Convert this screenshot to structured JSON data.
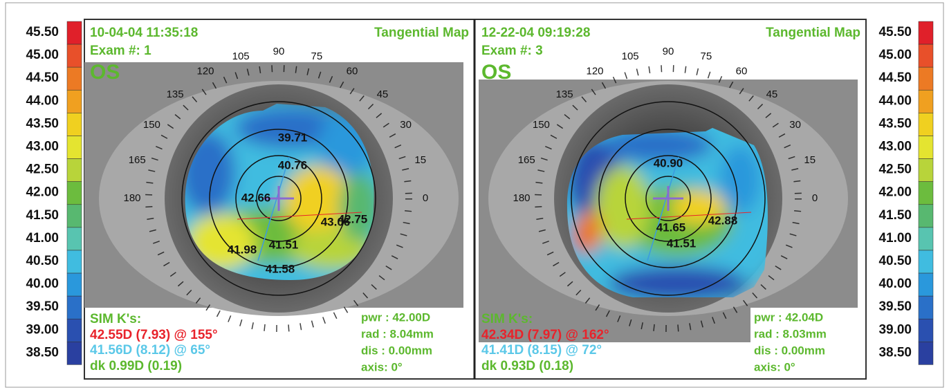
{
  "scales": [
    {
      "labels": [
        "45.50",
        "45.00",
        "44.50",
        "44.00",
        "43.50",
        "43.00",
        "42.50",
        "42.00",
        "41.50",
        "41.00",
        "40.50",
        "40.00",
        "39.50",
        "39.00",
        "38.50"
      ],
      "colors": [
        "#e0202a",
        "#e8502a",
        "#ec7a24",
        "#f0a020",
        "#f0d020",
        "#e4e430",
        "#b8d43a",
        "#6cbc3e",
        "#58b870",
        "#58c4b0",
        "#40bce0",
        "#2a98dc",
        "#2a70c8",
        "#2a50b0",
        "#2a40a0"
      ]
    },
    {
      "labels": [
        "45.50",
        "45.00",
        "44.50",
        "44.00",
        "43.50",
        "43.00",
        "42.50",
        "42.00",
        "41.50",
        "41.00",
        "40.50",
        "40.00",
        "39.50",
        "39.00",
        "38.50"
      ],
      "colors": [
        "#e0202a",
        "#e8502a",
        "#ec7a24",
        "#f0a020",
        "#f0d020",
        "#e4e430",
        "#b8d43a",
        "#6cbc3e",
        "#58b870",
        "#58c4b0",
        "#40bce0",
        "#2a98dc",
        "#2a70c8",
        "#2a50b0",
        "#2a40a0"
      ]
    }
  ],
  "panels": [
    {
      "date": "10-04-04 11:35:18",
      "map_type": "Tangential Map",
      "exam": "Exam #: 1",
      "eye": "OS",
      "angles": [
        "105",
        "90",
        "75",
        "60",
        "45",
        "30",
        "15",
        "0",
        "180",
        "165",
        "150",
        "135",
        "120"
      ],
      "readings": [
        "39.71",
        "40.76",
        "42.66",
        "43.06",
        "42.75",
        "41.98",
        "41.51",
        "41.58"
      ],
      "sim_title": "SIM K's:",
      "k_steep": "42.55D (7.93) @ 155°",
      "k_flat": "41.56D (8.12) @ 65°",
      "dk": "dk  0.99D (0.19)",
      "info": [
        "pwr : 42.00D",
        "rad :  8.04mm",
        "dis :  0.00mm",
        "axis:  0°"
      ]
    },
    {
      "date": "12-22-04 09:19:28",
      "map_type": "Tangential Map",
      "exam": "Exam #: 3",
      "eye": "OS",
      "angles": [
        "105",
        "90",
        "75",
        "60",
        "45",
        "30",
        "15",
        "0",
        "180",
        "165",
        "150",
        "135",
        "120"
      ],
      "readings": [
        "40.90",
        "41.65",
        "42.88",
        "41.51"
      ],
      "sim_title": "SIM K's:",
      "k_steep": "42.34D (7.97) @ 162°",
      "k_flat": "41.41D (8.15) @ 72°",
      "dk": "dk  0.93D (0.18)",
      "info": [
        "pwr : 42.04D",
        "rad :  8.03mm",
        "dis :  0.00mm",
        "axis:  0°"
      ]
    }
  ]
}
